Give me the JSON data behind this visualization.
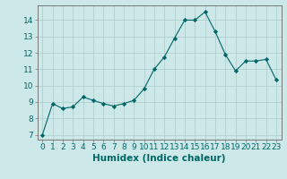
{
  "x": [
    0,
    1,
    2,
    3,
    4,
    5,
    6,
    7,
    8,
    9,
    10,
    11,
    12,
    13,
    14,
    15,
    16,
    17,
    18,
    19,
    20,
    21,
    22,
    23
  ],
  "y": [
    7.0,
    8.9,
    8.6,
    8.7,
    9.3,
    9.1,
    8.9,
    8.75,
    8.9,
    9.1,
    9.8,
    11.0,
    11.75,
    12.9,
    14.0,
    14.0,
    14.5,
    13.3,
    11.9,
    10.9,
    11.5,
    11.5,
    11.6,
    10.35
  ],
  "line_color": "#006666",
  "marker": "D",
  "marker_size": 2.2,
  "bg_color": "#cce8e8",
  "grid_color": "#aacccc",
  "xlabel": "Humidex (Indice chaleur)",
  "ylabel_ticks": [
    7,
    8,
    9,
    10,
    11,
    12,
    13,
    14
  ],
  "xlim": [
    -0.5,
    23.5
  ],
  "ylim": [
    6.7,
    14.9
  ],
  "xticks": [
    0,
    1,
    2,
    3,
    4,
    5,
    6,
    7,
    8,
    9,
    10,
    11,
    12,
    13,
    14,
    15,
    16,
    17,
    18,
    19,
    20,
    21,
    22,
    23
  ],
  "tick_fontsize": 6.5,
  "xlabel_fontsize": 7.5
}
